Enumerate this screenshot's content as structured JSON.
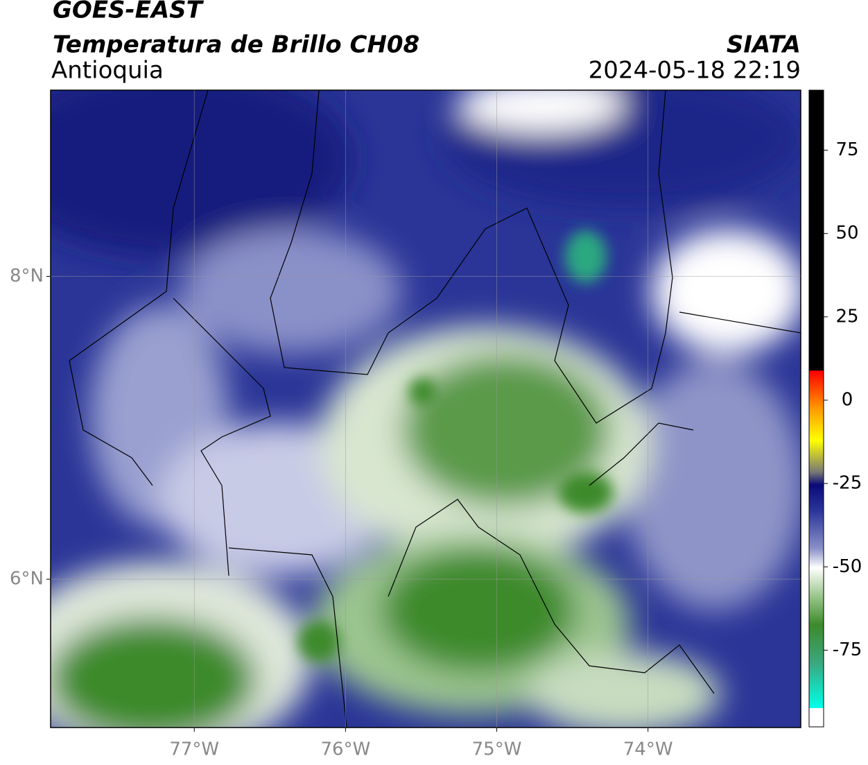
{
  "header": {
    "title": "GOES-EAST",
    "subtitle": "Temperatura de Brillo CH08",
    "region": "Antioquia",
    "source": "SIATA",
    "datetime": "2024-05-18 22:19"
  },
  "map": {
    "xlim": [
      -77.95,
      -72.99
    ],
    "ylim": [
      5.02,
      9.23
    ],
    "xticks": [
      {
        "value": -77,
        "label": "77°W"
      },
      {
        "value": -76,
        "label": "76°W"
      },
      {
        "value": -75,
        "label": "75°W"
      },
      {
        "value": -74,
        "label": "74°W"
      }
    ],
    "yticks": [
      {
        "value": 8,
        "label": "8°N"
      },
      {
        "value": 6,
        "label": "6°N"
      }
    ]
  },
  "colorbar": {
    "lim": [
      -98,
      93
    ],
    "ticks": [
      75,
      50,
      25,
      0,
      -25,
      -50,
      -75
    ]
  }
}
